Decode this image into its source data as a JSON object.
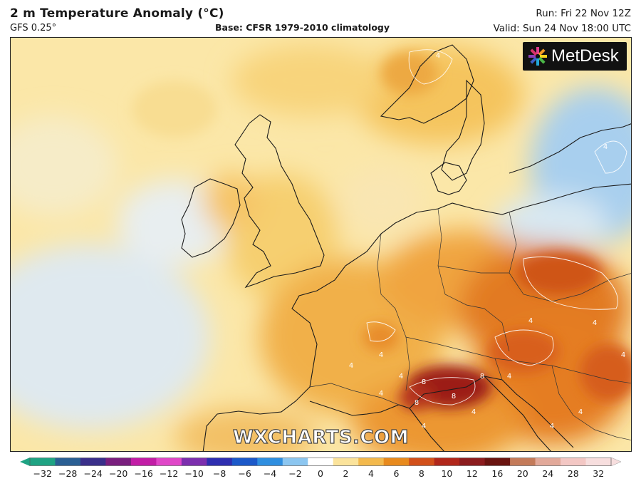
{
  "header": {
    "title": "2 m Temperature Anomaly (°C)",
    "model": "GFS 0.25°",
    "base": "Base: CFSR 1979-2010 climatology",
    "run": "Run: Fri 22 Nov 12Z",
    "valid": "Valid: Sun 24 Nov 18:00 UTC"
  },
  "logo": {
    "text": "MetDesk",
    "icon": "metdesk-star-logo"
  },
  "watermark": "WXCHARTS.COM",
  "colorbar": {
    "labels": [
      "−32",
      "−28",
      "−24",
      "−20",
      "−16",
      "−12",
      "−10",
      "−8",
      "−6",
      "−4",
      "−2",
      "0",
      "2",
      "4",
      "6",
      "8",
      "10",
      "12",
      "16",
      "20",
      "24",
      "28",
      "32"
    ],
    "colors": [
      "#1fa383",
      "#2a5f93",
      "#3a2f8a",
      "#7a1f7e",
      "#c21da6",
      "#e047c8",
      "#7c2fae",
      "#2e2eb0",
      "#1c59c9",
      "#2f8fe0",
      "#8cc6f0",
      "#ffffff",
      "#fbe39b",
      "#f3b94d",
      "#e88a1d",
      "#d2501a",
      "#b1271b",
      "#8c1c1e",
      "#6a1410",
      "#c47b5a",
      "#e2a99a",
      "#f3c7c4",
      "#f7dede"
    ],
    "icon": "colorbar-arrows"
  },
  "map": {
    "contour_labels": [
      "4",
      "4",
      "4",
      "4",
      "4",
      "4",
      "4",
      "4",
      "4",
      "4",
      "4",
      "4",
      "4",
      "8",
      "8",
      "8",
      "8",
      "4"
    ]
  }
}
